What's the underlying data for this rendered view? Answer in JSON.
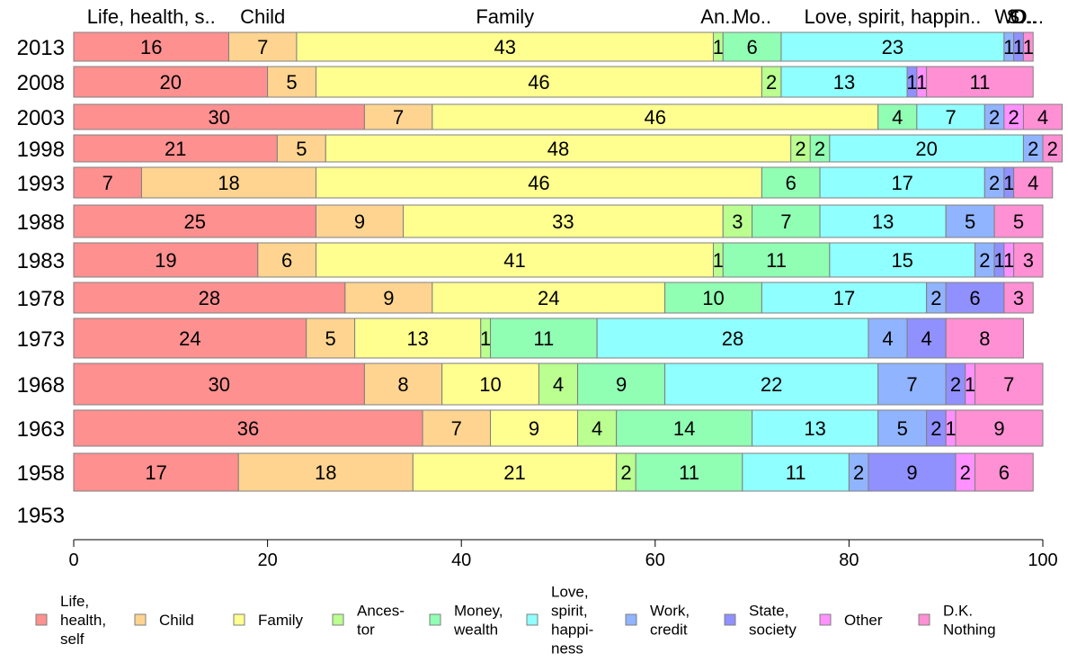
{
  "chart_data": {
    "type": "bar",
    "orientation": "horizontal",
    "stacked": true,
    "xlim": [
      0,
      100
    ],
    "xticks": [
      "0",
      "20",
      "40",
      "60",
      "80",
      "100"
    ],
    "categories": [
      "2013",
      "2008",
      "2003",
      "1998",
      "1993",
      "1988",
      "1983",
      "1978",
      "1973",
      "1968",
      "1963",
      "1958",
      "1953"
    ],
    "top_labels": [
      "Life, health, s..",
      "Child",
      "Family",
      "An..",
      "Mo..",
      "Love, spirit, happin..",
      "W..",
      "S..",
      "O..",
      "D..."
    ],
    "legend_position": "bottom",
    "series": [
      {
        "name": "Life, health, self",
        "legend_lines": [
          "Life,",
          "health,",
          "self"
        ],
        "color": "#ff9090",
        "values": [
          16,
          20,
          30,
          21,
          7,
          25,
          19,
          28,
          24,
          30,
          36,
          17,
          null
        ]
      },
      {
        "name": "Child",
        "legend_lines": [
          "Child"
        ],
        "color": "#ffd490",
        "values": [
          7,
          5,
          7,
          5,
          18,
          9,
          6,
          9,
          5,
          8,
          7,
          18,
          null
        ]
      },
      {
        "name": "Family",
        "legend_lines": [
          "Family"
        ],
        "color": "#ffff90",
        "values": [
          43,
          46,
          46,
          48,
          46,
          33,
          41,
          24,
          13,
          10,
          9,
          21,
          null
        ]
      },
      {
        "name": "Ancestor",
        "legend_lines": [
          "Ances-",
          "tor"
        ],
        "color": "#baff90",
        "values": [
          1,
          2,
          0,
          2,
          0,
          3,
          1,
          0,
          1,
          4,
          4,
          2,
          null
        ]
      },
      {
        "name": "Money, wealth",
        "legend_lines": [
          "Money,",
          "wealth"
        ],
        "color": "#90ffb4",
        "values": [
          6,
          0,
          4,
          2,
          6,
          7,
          11,
          10,
          11,
          9,
          14,
          11,
          null
        ]
      },
      {
        "name": "Love, spirit, happiness",
        "legend_lines": [
          "Love,",
          "spirit,",
          "happi-",
          "ness"
        ],
        "color": "#90ffff",
        "values": [
          23,
          13,
          7,
          20,
          17,
          13,
          15,
          17,
          28,
          22,
          13,
          11,
          null
        ]
      },
      {
        "name": "Work, credit",
        "legend_lines": [
          "Work,",
          "credit"
        ],
        "color": "#90b4ff",
        "values": [
          1,
          0,
          2,
          2,
          2,
          5,
          2,
          2,
          4,
          7,
          5,
          2,
          null
        ]
      },
      {
        "name": "State, society",
        "legend_lines": [
          "State,",
          "society"
        ],
        "color": "#9090ff",
        "values": [
          1,
          1,
          0,
          0,
          1,
          0,
          1,
          6,
          4,
          2,
          2,
          9,
          null
        ]
      },
      {
        "name": "Other",
        "legend_lines": [
          "Other"
        ],
        "color": "#ff90ff",
        "values": [
          0,
          1,
          2,
          0,
          0,
          0,
          1,
          0,
          0,
          1,
          1,
          2,
          null
        ]
      },
      {
        "name": "D.K. Nothing",
        "legend_lines": [
          "D.K.",
          "Nothing"
        ],
        "color": "#ff90d4",
        "values": [
          1,
          11,
          4,
          2,
          4,
          5,
          3,
          3,
          8,
          7,
          9,
          6,
          null
        ]
      }
    ]
  }
}
